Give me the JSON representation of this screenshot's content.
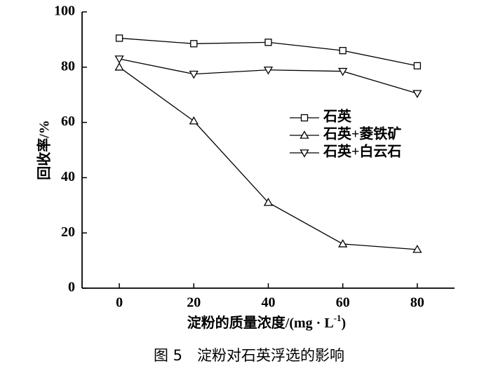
{
  "chart_data": {
    "type": "line",
    "x": [
      0,
      20,
      40,
      60,
      80
    ],
    "xlim": [
      -10,
      90
    ],
    "xticks": [
      0,
      20,
      40,
      60,
      80
    ],
    "ylim": [
      0,
      100
    ],
    "yticks": [
      0,
      20,
      40,
      60,
      80,
      100
    ],
    "xlabel": [
      "淀粉的质量浓度/(mg · L",
      "-1",
      ")"
    ],
    "ylabel": "回收率/%",
    "caption": "图 5　淀粉对石英浮选的影响",
    "legend_position": "right",
    "series": [
      {
        "name": "石英",
        "color": "#000000",
        "marker": "square",
        "values": [
          90.5,
          88.5,
          89,
          86,
          80.5
        ]
      },
      {
        "name": "石英+菱铁矿",
        "color": "#000000",
        "marker": "triangle-up",
        "values": [
          80,
          60.5,
          31,
          16,
          14
        ]
      },
      {
        "name": "石英+白云石",
        "color": "#000000",
        "marker": "triangle-down",
        "values": [
          83,
          77.5,
          79,
          78.5,
          70.5
        ]
      }
    ]
  }
}
